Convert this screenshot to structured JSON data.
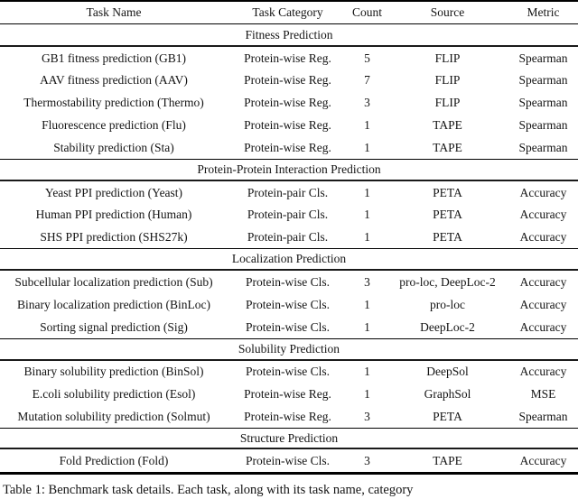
{
  "table": {
    "columns": [
      "Task Name",
      "Task Category",
      "Count",
      "Source",
      "Metric"
    ],
    "sections": [
      {
        "title": "Fitness Prediction",
        "rows": [
          {
            "task": "GB1 fitness prediction (GB1)",
            "category": "Protein-wise Reg.",
            "count": "5",
            "source": "FLIP",
            "metric": "Spearman"
          },
          {
            "task": "AAV fitness prediction (AAV)",
            "category": "Protein-wise Reg.",
            "count": "7",
            "source": "FLIP",
            "metric": "Spearman"
          },
          {
            "task": "Thermostability prediction (Thermo)",
            "category": "Protein-wise Reg.",
            "count": "3",
            "source": "FLIP",
            "metric": "Spearman"
          },
          {
            "task": "Fluorescence prediction (Flu)",
            "category": "Protein-wise Reg.",
            "count": "1",
            "source": "TAPE",
            "metric": "Spearman"
          },
          {
            "task": "Stability prediction (Sta)",
            "category": "Protein-wise Reg.",
            "count": "1",
            "source": "TAPE",
            "metric": "Spearman"
          }
        ]
      },
      {
        "title": "Protein-Protein Interaction Prediction",
        "rows": [
          {
            "task": "Yeast PPI prediction (Yeast)",
            "category": "Protein-pair Cls.",
            "count": "1",
            "source": "PETA",
            "metric": "Accuracy"
          },
          {
            "task": "Human PPI prediction (Human)",
            "category": "Protein-pair Cls.",
            "count": "1",
            "source": "PETA",
            "metric": "Accuracy"
          },
          {
            "task": "SHS PPI prediction (SHS27k)",
            "category": "Protein-pair Cls.",
            "count": "1",
            "source": "PETA",
            "metric": "Accuracy"
          }
        ]
      },
      {
        "title": "Localization Prediction",
        "rows": [
          {
            "task": "Subcellular localization prediction (Sub)",
            "category": "Protein-wise Cls.",
            "count": "3",
            "source": "pro-loc, DeepLoc-2",
            "metric": "Accuracy"
          },
          {
            "task": "Binary localization prediction (BinLoc)",
            "category": "Protein-wise Cls.",
            "count": "1",
            "source": "pro-loc",
            "metric": "Accuracy"
          },
          {
            "task": "Sorting signal prediction (Sig)",
            "category": "Protein-wise Cls.",
            "count": "1",
            "source": "DeepLoc-2",
            "metric": "Accuracy"
          }
        ]
      },
      {
        "title": "Solubility Prediction",
        "rows": [
          {
            "task": "Binary solubility prediction (BinSol)",
            "category": "Protein-wise Cls.",
            "count": "1",
            "source": "DeepSol",
            "metric": "Accuracy"
          },
          {
            "task": "E.coli solubility prediction (Esol)",
            "category": "Protein-wise Reg.",
            "count": "1",
            "source": "GraphSol",
            "metric": "MSE"
          },
          {
            "task": "Mutation solubility prediction (Solmut)",
            "category": "Protein-wise Reg.",
            "count": "3",
            "source": "PETA",
            "metric": "Spearman"
          }
        ]
      },
      {
        "title": "Structure Prediction",
        "rows": [
          {
            "task": "Fold Prediction (Fold)",
            "category": "Protein-wise Cls.",
            "count": "3",
            "source": "TAPE",
            "metric": "Accuracy"
          }
        ]
      }
    ]
  },
  "caption": "Table 1: Benchmark task details. Each task, along with its task name, category"
}
